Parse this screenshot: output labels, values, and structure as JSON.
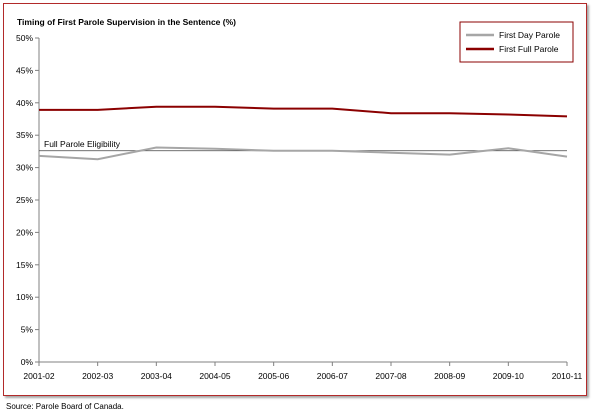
{
  "chart_data": {
    "type": "line",
    "title": "Timing of First Parole Supervision in the Sentence (%)",
    "categories": [
      "2001-02",
      "2002-03",
      "2003-04",
      "2004-05",
      "2005-06",
      "2006-07",
      "2007-08",
      "2008-09",
      "2009-10",
      "2010-11"
    ],
    "series": [
      {
        "name": "First Day Parole",
        "color": "#a6a6a6",
        "values": [
          31.8,
          31.3,
          33.1,
          32.9,
          32.6,
          32.6,
          32.3,
          32.0,
          33.0,
          31.7
        ]
      },
      {
        "name": "First Full Parole",
        "color": "#8b0000",
        "values": [
          38.9,
          38.9,
          39.4,
          39.4,
          39.1,
          39.1,
          38.4,
          38.4,
          38.2,
          37.9
        ]
      }
    ],
    "reference_line": {
      "label": "Full Parole Eligibility",
      "value": 32.6,
      "color": "#404040"
    },
    "y_ticks": [
      "0%",
      "5%",
      "10%",
      "15%",
      "20%",
      "25%",
      "30%",
      "35%",
      "40%",
      "45%",
      "50%"
    ],
    "ylim": [
      0,
      50
    ],
    "grid": false,
    "legend_position": "top-right"
  },
  "source": "Source:  Parole Board of Canada."
}
